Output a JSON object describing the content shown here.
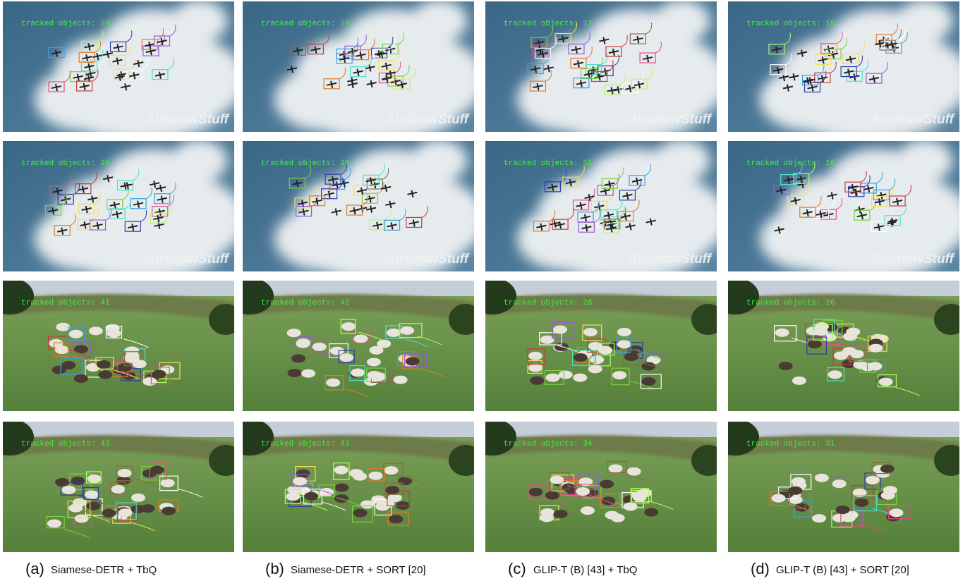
{
  "watermark": "AirshowStuff",
  "panels": [
    {
      "label": "(a)",
      "method": "Siamese-DETR + TbQ",
      "frames": [
        {
          "counter": "tracked objects: 24"
        },
        {
          "counter": "tracked objects: 26"
        },
        {
          "counter": "tracked objects: 41"
        },
        {
          "counter": "tracked objects: 43"
        }
      ]
    },
    {
      "label": "(b)",
      "method": "Siamese-DETR + SORT [20]",
      "frames": [
        {
          "counter": "tracked objects: 24"
        },
        {
          "counter": "tracked objects: 24"
        },
        {
          "counter": "tracked objects: 42"
        },
        {
          "counter": "tracked objects: 43"
        }
      ]
    },
    {
      "label": "(c)",
      "method": "GLIP-T (B) [43] + TbQ",
      "frames": [
        {
          "counter": "tracked objects: 17"
        },
        {
          "counter": "tracked objects: 16"
        },
        {
          "counter": "tracked objects: 28"
        },
        {
          "counter": "tracked objects: 34"
        }
      ]
    },
    {
      "label": "(d)",
      "method": "GLIP-T (B) [43] + SORT [20]",
      "frames": [
        {
          "counter": "tracked objects: 18"
        },
        {
          "counter": "tracked objects: 16"
        },
        {
          "counter": "tracked objects: 26"
        },
        {
          "counter": "tracked objects: 31"
        }
      ]
    }
  ]
}
